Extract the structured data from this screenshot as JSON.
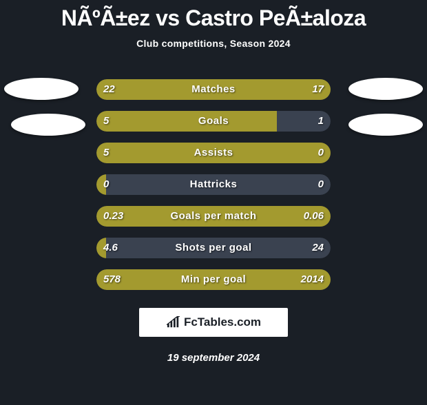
{
  "title": "NÃºÃ±ez vs Castro PeÃ±aloza",
  "subtitle": "Club competitions, Season 2024",
  "date": "19 september 2024",
  "footer_brand": "FcTables.com",
  "colors": {
    "left": "#a39a2f",
    "right": "#3a4250",
    "background": "#1a1f26"
  },
  "stats": [
    {
      "label": "Matches",
      "left_val": "22",
      "right_val": "17",
      "left_pct": 100,
      "right_pct": 0
    },
    {
      "label": "Goals",
      "left_val": "5",
      "right_val": "1",
      "left_pct": 77,
      "right_pct": 23
    },
    {
      "label": "Assists",
      "left_val": "5",
      "right_val": "0",
      "left_pct": 100,
      "right_pct": 0
    },
    {
      "label": "Hattricks",
      "left_val": "0",
      "right_val": "0",
      "left_pct": 4,
      "right_pct": 96
    },
    {
      "label": "Goals per match",
      "left_val": "0.23",
      "right_val": "0.06",
      "left_pct": 100,
      "right_pct": 0
    },
    {
      "label": "Shots per goal",
      "left_val": "4.6",
      "right_val": "24",
      "left_pct": 4,
      "right_pct": 96
    },
    {
      "label": "Min per goal",
      "left_val": "578",
      "right_val": "2014",
      "left_pct": 100,
      "right_pct": 0
    }
  ]
}
